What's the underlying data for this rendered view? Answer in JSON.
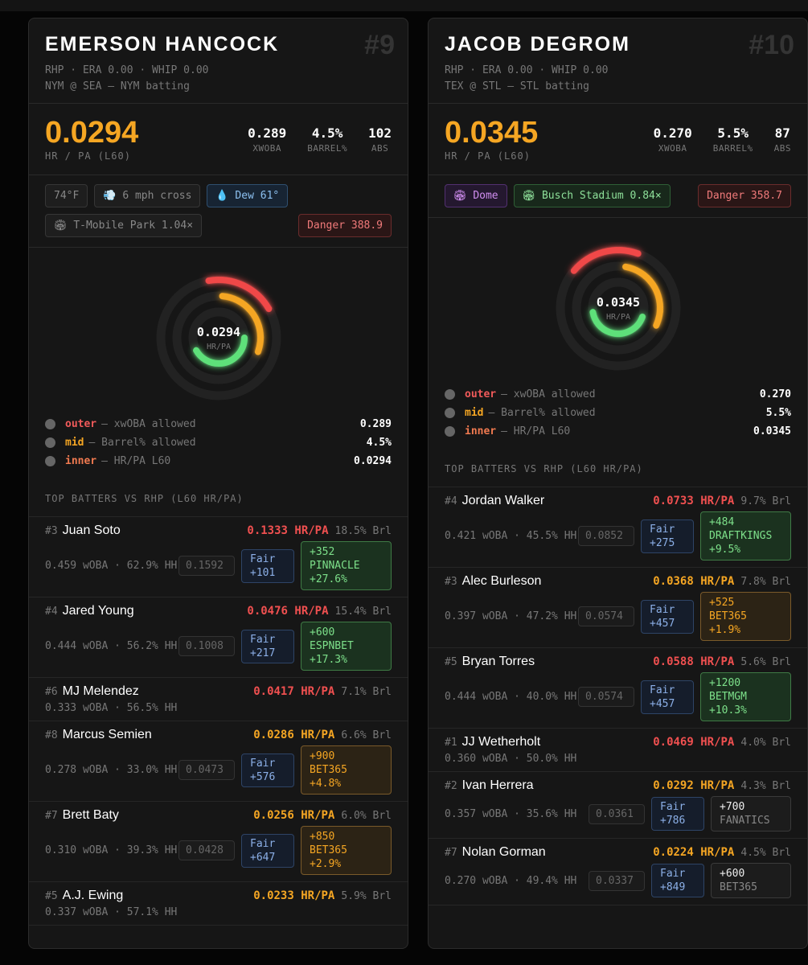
{
  "cards": [
    {
      "name": "Emerson Hancock",
      "rank": "#9",
      "meta": "RHP · ERA 0.00 · WHIP 0.00",
      "matchup": "NYM @ SEA — NYM batting",
      "hr_pa": "0.0294",
      "hr_pa_label": "HR / PA (L60)",
      "stats": [
        {
          "value": "0.289",
          "label": "XWOBA"
        },
        {
          "value": "4.5%",
          "label": "BARREL%"
        },
        {
          "value": "102",
          "label": "ABS"
        }
      ],
      "chips": [
        {
          "text": "74°F",
          "tone": "plain"
        },
        {
          "text": "💨 6 mph cross",
          "tone": "plain"
        },
        {
          "text": "💧 Dew 61°",
          "tone": "blue"
        },
        {
          "text": "🏟 T-Mobile Park 1.04×",
          "tone": "plain"
        },
        {
          "text": "Danger 388.9",
          "tone": "danger"
        }
      ],
      "ring_value": "0.0294",
      "ring_label": "HR/PA",
      "legend": [
        {
          "ring": "outer",
          "label": "— xwOBA allowed",
          "value": "0.289"
        },
        {
          "ring": "mid",
          "label": "— Barrel% allowed",
          "value": "4.5%"
        },
        {
          "ring": "inner",
          "label": "— HR/PA L60",
          "value": "0.0294"
        }
      ],
      "section_title": "TOP BATTERS VS RHP (L60 HR/PA)",
      "batters": [
        {
          "order": "#3",
          "name": "Juan Soto",
          "hr_pa": "0.1333 HR/PA",
          "tone": "red",
          "barrel": "18.5% Brl",
          "woba": "0.459 wOBA · 62.9% HH",
          "proj": "0.1592",
          "fair": "Fair",
          "fair_odds": "+101",
          "odds": {
            "line": "+352",
            "book": "PINNACLE",
            "edge": "+27.6%",
            "tone": "green"
          }
        },
        {
          "order": "#4",
          "name": "Jared Young",
          "hr_pa": "0.0476 HR/PA",
          "tone": "red",
          "barrel": "15.4% Brl",
          "woba": "0.444 wOBA · 56.2% HH",
          "proj": "0.1008",
          "fair": "Fair",
          "fair_odds": "+217",
          "odds": {
            "line": "+600",
            "book": "ESPNBET",
            "edge": "+17.3%",
            "tone": "green"
          }
        },
        {
          "order": "#6",
          "name": "MJ Melendez",
          "hr_pa": "0.0417 HR/PA",
          "tone": "red",
          "barrel": "7.1% Brl",
          "woba": "0.333 wOBA · 56.5% HH"
        },
        {
          "order": "#8",
          "name": "Marcus Semien",
          "hr_pa": "0.0286 HR/PA",
          "tone": "orange",
          "barrel": "6.6% Brl",
          "woba": "0.278 wOBA · 33.0% HH",
          "proj": "0.0473",
          "fair": "Fair",
          "fair_odds": "+576",
          "odds": {
            "line": "+900",
            "book": "BET365",
            "edge": "+4.8%",
            "tone": "orange"
          }
        },
        {
          "order": "#7",
          "name": "Brett Baty",
          "hr_pa": "0.0256 HR/PA",
          "tone": "orange",
          "barrel": "6.0% Brl",
          "woba": "0.310 wOBA · 39.3% HH",
          "proj": "0.0428",
          "fair": "Fair",
          "fair_odds": "+647",
          "odds": {
            "line": "+850",
            "book": "BET365",
            "edge": "+2.9%",
            "tone": "orange"
          }
        },
        {
          "order": "#5",
          "name": "A.J. Ewing",
          "hr_pa": "0.0233 HR/PA",
          "tone": "orange",
          "barrel": "5.9% Brl",
          "woba": "0.337 wOBA · 57.1% HH"
        }
      ]
    },
    {
      "name": "Jacob deGrom",
      "rank": "#10",
      "meta": "RHP · ERA 0.00 · WHIP 0.00",
      "matchup": "TEX @ STL — STL batting",
      "hr_pa": "0.0345",
      "hr_pa_label": "HR / PA (L60)",
      "stats": [
        {
          "value": "0.270",
          "label": "XWOBA"
        },
        {
          "value": "5.5%",
          "label": "BARREL%"
        },
        {
          "value": "87",
          "label": "ABS"
        }
      ],
      "chips": [
        {
          "text": "🏟 Dome",
          "tone": "purple"
        },
        {
          "text": "🏟 Busch Stadium 0.84×",
          "tone": "green"
        },
        {
          "text": "Danger 358.7",
          "tone": "danger"
        }
      ],
      "ring_value": "0.0345",
      "ring_label": "HR/PA",
      "legend": [
        {
          "ring": "outer",
          "label": "— xwOBA allowed",
          "value": "0.270"
        },
        {
          "ring": "mid",
          "label": "— Barrel% allowed",
          "value": "5.5%"
        },
        {
          "ring": "inner",
          "label": "— HR/PA L60",
          "value": "0.0345"
        }
      ],
      "section_title": "TOP BATTERS VS RHP (L60 HR/PA)",
      "batters": [
        {
          "order": "#4",
          "name": "Jordan Walker",
          "hr_pa": "0.0733 HR/PA",
          "tone": "red",
          "barrel": "9.7% Brl",
          "woba": "0.421 wOBA · 45.5% HH",
          "proj": "0.0852",
          "fair": "Fair",
          "fair_odds": "+275",
          "odds": {
            "line": "+484",
            "book": "DRAFTKINGS",
            "edge": "+9.5%",
            "tone": "green"
          }
        },
        {
          "order": "#3",
          "name": "Alec Burleson",
          "hr_pa": "0.0368 HR/PA",
          "tone": "orange",
          "barrel": "7.8% Brl",
          "woba": "0.397 wOBA · 47.2% HH",
          "proj": "0.0574",
          "fair": "Fair",
          "fair_odds": "+457",
          "odds": {
            "line": "+525",
            "book": "BET365",
            "edge": "+1.9%",
            "tone": "orange"
          }
        },
        {
          "order": "#5",
          "name": "Bryan Torres",
          "hr_pa": "0.0588 HR/PA",
          "tone": "red",
          "barrel": "5.6% Brl",
          "woba": "0.444 wOBA · 40.0% HH",
          "proj": "0.0574",
          "fair": "Fair",
          "fair_odds": "+457",
          "odds": {
            "line": "+1200",
            "book": "BETMGM",
            "edge": "+10.3%",
            "tone": "green"
          }
        },
        {
          "order": "#1",
          "name": "JJ Wetherholt",
          "hr_pa": "0.0469 HR/PA",
          "tone": "red",
          "barrel": "4.0% Brl",
          "woba": "0.360 wOBA · 50.0% HH"
        },
        {
          "order": "#2",
          "name": "Ivan Herrera",
          "hr_pa": "0.0292 HR/PA",
          "tone": "orange",
          "barrel": "4.3% Brl",
          "woba": "0.357 wOBA · 35.6% HH",
          "proj": "0.0361",
          "fair": "Fair",
          "fair_odds": "+786",
          "odds": {
            "line": "+700",
            "book": "FANATICS",
            "tone": "gray"
          }
        },
        {
          "order": "#7",
          "name": "Nolan Gorman",
          "hr_pa": "0.0224 HR/PA",
          "tone": "orange",
          "barrel": "4.5% Brl",
          "woba": "0.270 wOBA · 49.4% HH",
          "proj": "0.0337",
          "fair": "Fair",
          "fair_odds": "+849",
          "odds": {
            "line": "+600",
            "book": "BET365",
            "tone": "gray"
          }
        }
      ]
    }
  ]
}
